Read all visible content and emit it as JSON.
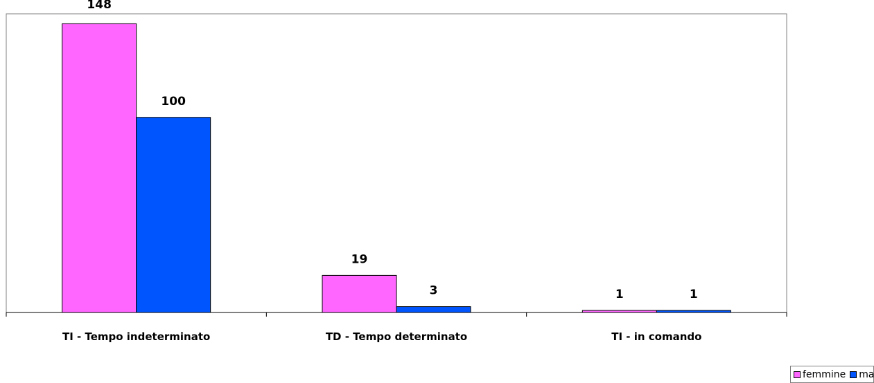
{
  "chart_data": {
    "type": "bar",
    "categories": [
      "TI - Tempo indeterminato",
      "TD - Tempo determinato",
      "TI - in comando"
    ],
    "series": [
      {
        "name": "femmine",
        "values": [
          148,
          19,
          1
        ],
        "color": "#FF66FF"
      },
      {
        "name": "maschi",
        "values": [
          100,
          3,
          1
        ],
        "color": "#0055FF"
      }
    ],
    "ylim": [
      0,
      150
    ],
    "grid": false,
    "legend_position": "bottom-right",
    "title": "",
    "xlabel": "",
    "ylabel": ""
  }
}
